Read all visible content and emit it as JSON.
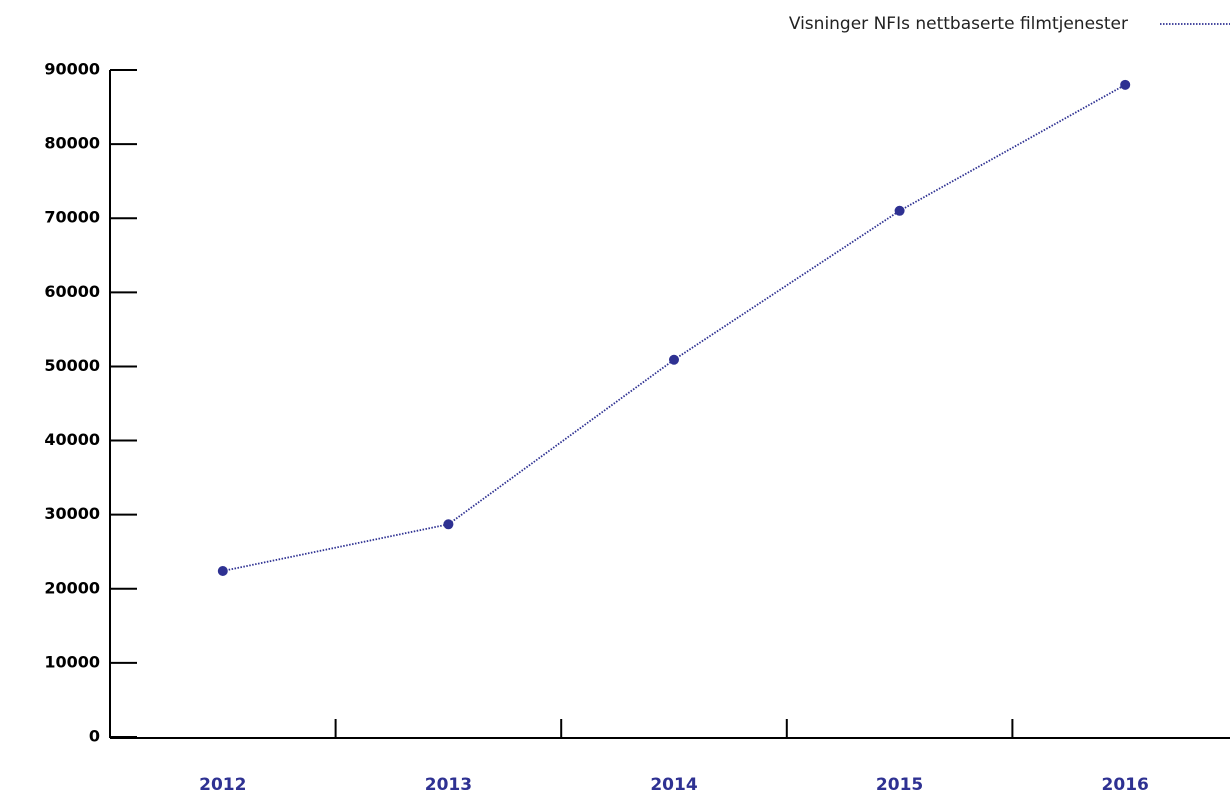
{
  "chart_data": {
    "type": "line",
    "categories": [
      "2012",
      "2013",
      "2014",
      "2015",
      "2016"
    ],
    "series": [
      {
        "name": "Visninger NFIs nettbaserte filmtjenester",
        "color": "#2e3192",
        "values": [
          22400,
          28700,
          50900,
          71000,
          88000
        ]
      }
    ],
    "ylim": [
      0,
      90000
    ],
    "yticks": [
      0,
      10000,
      20000,
      30000,
      40000,
      50000,
      60000,
      70000,
      80000,
      90000
    ],
    "legend": "top-right"
  }
}
